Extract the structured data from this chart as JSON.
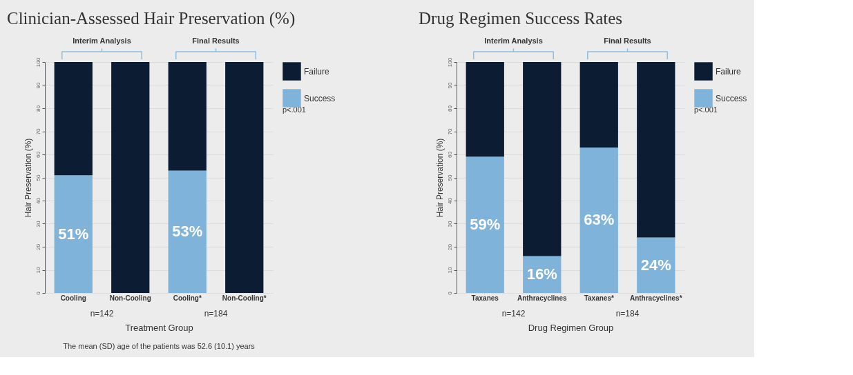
{
  "chart_data": [
    {
      "type": "bar",
      "title": "Clinician-Assessed Hair Preservation (%)",
      "xlabel": "Treatment Group",
      "ylabel": "Hair Preservation (%)",
      "categories": [
        "Cooling",
        "Non-Cooling",
        "Cooling*",
        "Non-Cooling*"
      ],
      "stacked": true,
      "series": [
        {
          "name": "Success",
          "color": "#7fb3d9",
          "values": [
            51,
            0,
            53,
            0
          ],
          "value_labels": [
            "51%",
            null,
            "53%",
            null
          ]
        },
        {
          "name": "Failure",
          "color": "#0b1c33",
          "values": [
            49,
            100,
            47,
            100
          ]
        }
      ],
      "ylim": [
        0,
        100
      ],
      "yticks": [
        0,
        10,
        20,
        30,
        40,
        50,
        60,
        70,
        80,
        90,
        100
      ],
      "grid": "y",
      "legend": "right",
      "annotations": [
        "Interim Analysis",
        "Final Results",
        "n=142",
        "n=184",
        "p<.001",
        "The mean (SD) age of the patients was 52.6 (10.1) years"
      ]
    },
    {
      "type": "bar",
      "title": "Drug Regimen Success Rates",
      "xlabel": "Drug Regimen Group",
      "ylabel": "Hair Preservation (%)",
      "categories": [
        "Taxanes",
        "Anthracyclines",
        "Taxanes*",
        "Anthracyclines*"
      ],
      "stacked": true,
      "series": [
        {
          "name": "Success",
          "color": "#7fb3d9",
          "values": [
            59,
            16,
            63,
            24
          ],
          "value_labels": [
            "59%",
            "16%",
            "63%",
            "24%"
          ]
        },
        {
          "name": "Failure",
          "color": "#0b1c33",
          "values": [
            41,
            84,
            37,
            76
          ]
        }
      ],
      "ylim": [
        0,
        100
      ],
      "yticks": [
        0,
        10,
        20,
        30,
        40,
        50,
        60,
        70,
        80,
        90,
        100
      ],
      "grid": "y",
      "legend": "right",
      "annotations": [
        "Interim Analysis",
        "Final Results",
        "n=142",
        "n=184",
        "p<.001"
      ]
    }
  ]
}
